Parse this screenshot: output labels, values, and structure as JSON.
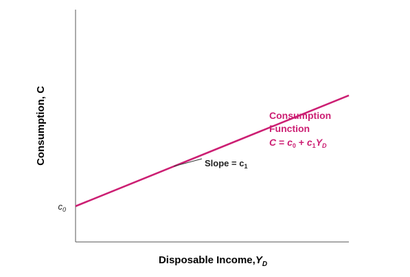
{
  "chart_data": {
    "type": "line",
    "xlabel": "Disposable Income,",
    "xlabel_var": "Y",
    "xlabel_sub": "D",
    "ylabel": "Consumption, C",
    "y_intercept_label": "c",
    "y_intercept_sub": "0",
    "series": [
      {
        "name": "Consumption Function",
        "x": [
          0,
          10
        ],
        "y": [
          1,
          4.1
        ]
      }
    ],
    "xlim": [
      0,
      10
    ],
    "ylim": [
      0,
      6.5
    ],
    "grid": false,
    "legend": "none",
    "series_label": {
      "line1": "Consumption",
      "line2": "Function",
      "equation_lhs": "C",
      "equation_eq": " = ",
      "equation_c0": "c",
      "equation_c0_sub": "0",
      "equation_plus": " + ",
      "equation_c1": "c",
      "equation_c1_sub": "1",
      "equation_Y": "Y",
      "equation_Y_sub": "D"
    },
    "annotations": [
      {
        "text": "Slope = c",
        "sub": "1",
        "at_x": 3.6
      }
    ]
  },
  "colors": {
    "line": "#cc1f73",
    "axis": "#555555",
    "text": "#222222",
    "leader": "#333333"
  }
}
